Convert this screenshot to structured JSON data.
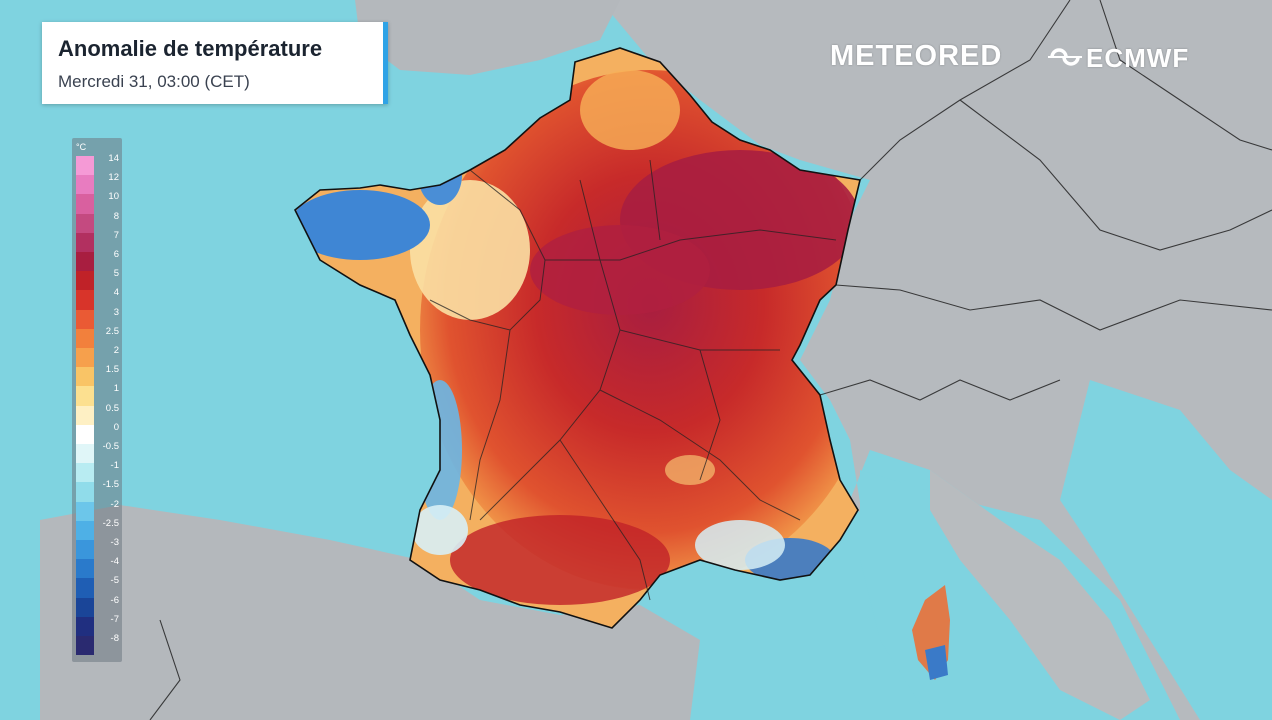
{
  "title": "Anomalie de température",
  "subtitle": "Mercredi 31, 03:00 (CET)",
  "branding": {
    "meteored": "METEORED",
    "ecmwf": "ECMWF"
  },
  "legend": {
    "unit": "°C",
    "ticks": [
      "14",
      "12",
      "10",
      "8",
      "7",
      "6",
      "5",
      "4",
      "3",
      "2.5",
      "2",
      "1.5",
      "1",
      "0.5",
      "0",
      "-0.5",
      "-1",
      "-1.5",
      "-2",
      "-2.5",
      "-3",
      "-4",
      "-5",
      "-6",
      "-7",
      "-8"
    ],
    "colors": [
      "#f59ad6",
      "#e87cc0",
      "#d9609f",
      "#c44a80",
      "#b23060",
      "#a81e40",
      "#c02228",
      "#d8342a",
      "#ea5a34",
      "#f2803c",
      "#f6a04c",
      "#f9c466",
      "#fce090",
      "#fef0c4",
      "#ffffff",
      "#e0f6f8",
      "#b8ecf2",
      "#90dcea",
      "#6cc6ea",
      "#4eb0e6",
      "#3a96dc",
      "#2a7acb",
      "#1f5eb4",
      "#1a4598",
      "#202f80",
      "#2a2a70"
    ]
  },
  "colors": {
    "sea": "#7fd3e0",
    "land": "#b4b8bc",
    "hot": "#c0262c",
    "very_hot": "#a21c40",
    "cool": "#3a96dc"
  }
}
